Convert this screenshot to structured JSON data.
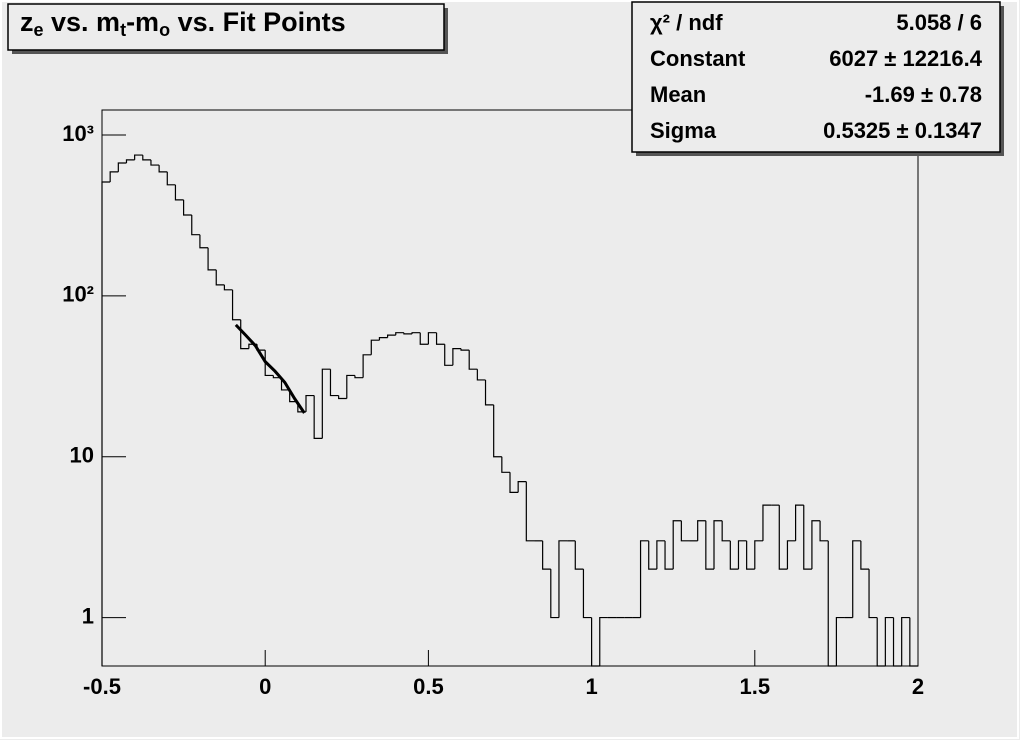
{
  "chart_data": {
    "type": "histogram",
    "title": [
      "z",
      "e",
      " vs. m",
      "t",
      "-m",
      "o",
      " vs. Fit Points"
    ],
    "bins": [
      -0.5,
      -0.475,
      -0.45,
      -0.425,
      -0.4,
      -0.375,
      -0.35,
      -0.325,
      -0.3,
      -0.275,
      -0.25,
      -0.225,
      -0.2,
      -0.175,
      -0.15,
      -0.125,
      -0.1,
      -0.075,
      -0.05,
      -0.025,
      0,
      0.025,
      0.05,
      0.075,
      0.1,
      0.125,
      0.15,
      0.175,
      0.2,
      0.225,
      0.25,
      0.275,
      0.3,
      0.325,
      0.35,
      0.375,
      0.4,
      0.425,
      0.45,
      0.475,
      0.5,
      0.525,
      0.55,
      0.575,
      0.6,
      0.625,
      0.65,
      0.675,
      0.7,
      0.725,
      0.75,
      0.775,
      0.8,
      0.825,
      0.85,
      0.875,
      0.9,
      0.925,
      0.95,
      0.975,
      1,
      1.025,
      1.05,
      1.075,
      1.1,
      1.125,
      1.15,
      1.175,
      1.2,
      1.225,
      1.25,
      1.275,
      1.3,
      1.325,
      1.35,
      1.375,
      1.4,
      1.425,
      1.45,
      1.475,
      1.5,
      1.525,
      1.55,
      1.575,
      1.6,
      1.625,
      1.65,
      1.675,
      1.7,
      1.725,
      1.75,
      1.775,
      1.8,
      1.825,
      1.85,
      1.875,
      1.9,
      1.925,
      1.95,
      1.975,
      2
    ],
    "values": [
      510,
      590,
      670,
      700,
      750,
      700,
      650,
      590,
      490,
      395,
      318,
      240,
      199,
      145,
      117,
      109,
      71,
      47,
      50,
      46,
      32,
      31,
      26,
      22,
      19,
      24,
      13,
      35,
      24,
      23,
      32,
      31,
      43,
      53,
      55,
      57,
      59,
      58,
      59,
      50,
      59,
      50,
      37,
      47,
      46,
      35,
      30,
      21,
      10,
      8,
      6,
      7,
      3,
      3,
      2,
      1,
      3,
      3,
      2,
      1,
      0,
      1,
      1,
      1,
      1,
      1,
      3,
      2,
      3,
      2,
      4,
      3,
      3,
      4,
      2,
      4,
      3,
      2,
      3,
      2,
      3,
      5,
      5,
      2,
      3,
      5,
      2,
      4,
      3,
      0,
      1,
      1,
      3,
      2,
      1,
      0,
      1,
      0,
      1,
      0
    ],
    "color": "#000000",
    "fit": {
      "x": [
        -0.09,
        -0.06,
        -0.03,
        0,
        0.03,
        0.06,
        0.09,
        0.12
      ],
      "values": [
        66,
        57,
        49,
        39,
        34,
        29,
        23,
        18.7
      ],
      "color": "#000000"
    },
    "xlim": [
      -0.5,
      2
    ],
    "xticks": [
      -0.5,
      0,
      0.5,
      1,
      1.5,
      2
    ],
    "ylim": [
      0.5,
      1430
    ],
    "yticks": [
      1,
      10,
      {
        "value": 100,
        "label": "10²"
      },
      {
        "value": 1000,
        "label": "10³"
      }
    ],
    "log_y": true,
    "stats": [
      {
        "label": "χ² / ndf",
        "value": "5.058 / 6"
      },
      {
        "label": "Constant",
        "value": "6027 ± 12216.4"
      },
      {
        "label": "Mean",
        "value": "-1.69 ± 0.78"
      },
      {
        "label": "Sigma",
        "value": "0.5325 ± 0.1347"
      }
    ]
  }
}
